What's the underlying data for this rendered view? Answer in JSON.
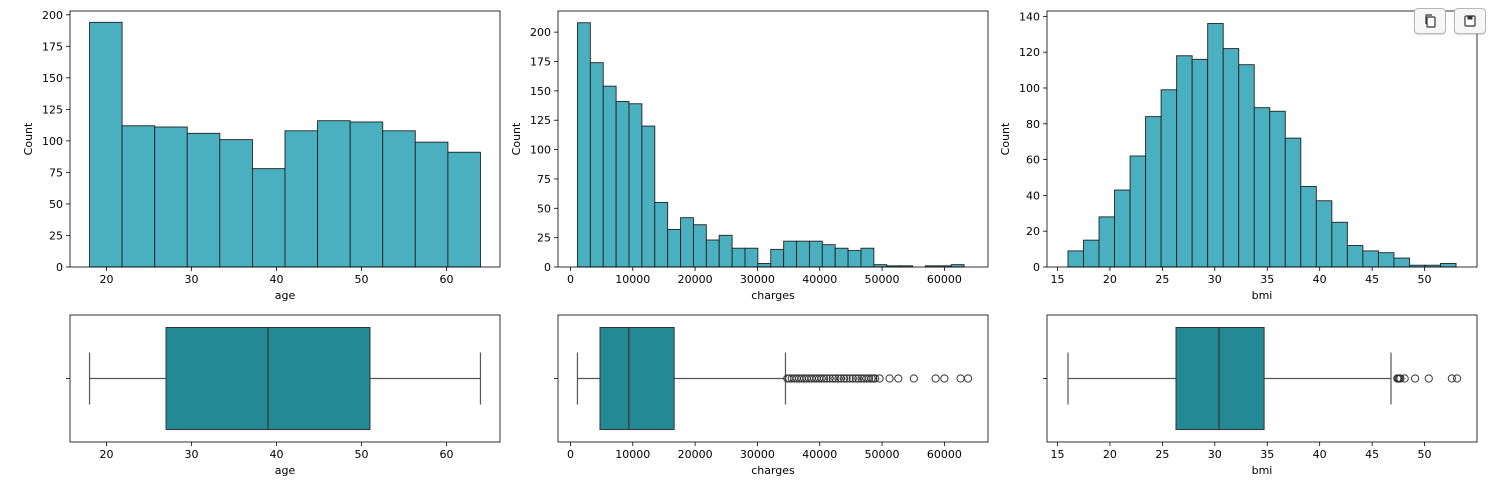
{
  "toolbar": {
    "copy_icon": "copy-icon",
    "save_icon": "save-icon"
  },
  "colors": {
    "hist_fill": "#4aafbf",
    "box_fill": "#238a95",
    "edge": "#222222",
    "axis": "#000000"
  },
  "chart_data": [
    {
      "type": "bar",
      "subtype": "histogram",
      "variable": "age",
      "xlabel": "age",
      "ylabel": "Count",
      "xlim": [
        15.7,
        66.3
      ],
      "ylim": [
        0,
        203
      ],
      "xticks": [
        20,
        30,
        40,
        50,
        60
      ],
      "yticks": [
        0,
        25,
        50,
        75,
        100,
        125,
        150,
        175,
        200
      ],
      "bin_edges": [
        18,
        21.83,
        25.67,
        29.5,
        33.33,
        37.17,
        41,
        44.83,
        48.67,
        52.5,
        56.33,
        60.17,
        64
      ],
      "values": [
        194,
        112,
        111,
        106,
        101,
        78,
        108,
        116,
        115,
        108,
        99,
        91
      ]
    },
    {
      "type": "bar",
      "subtype": "histogram",
      "variable": "charges",
      "xlabel": "charges",
      "ylabel": "Count",
      "xlim": [
        -2000,
        67000
      ],
      "ylim": [
        0,
        218
      ],
      "xticks": [
        0,
        10000,
        20000,
        30000,
        40000,
        50000,
        60000
      ],
      "yticks": [
        0,
        25,
        50,
        75,
        100,
        125,
        150,
        175,
        200
      ],
      "bin_edges": [
        1122,
        3190,
        5258,
        7326,
        9394,
        11462,
        13530,
        15598,
        17666,
        19734,
        21802,
        23870,
        25938,
        28006,
        30074,
        32142,
        34210,
        36278,
        38346,
        40414,
        42482,
        44550,
        46618,
        48686,
        50754,
        52822,
        54890,
        56958,
        59026,
        61094,
        63162
      ],
      "values": [
        208,
        174,
        154,
        141,
        139,
        120,
        55,
        32,
        42,
        36,
        23,
        27,
        16,
        16,
        3,
        15,
        22,
        22,
        22,
        19,
        16,
        14,
        16,
        2,
        1,
        1,
        0,
        1,
        1,
        2
      ]
    },
    {
      "type": "bar",
      "subtype": "histogram",
      "variable": "bmi",
      "xlabel": "bmi",
      "ylabel": "Count",
      "xlim": [
        14.0,
        55.0
      ],
      "ylim": [
        0,
        143
      ],
      "xticks": [
        15,
        20,
        25,
        30,
        35,
        40,
        45,
        50
      ],
      "yticks": [
        0,
        20,
        40,
        60,
        80,
        100,
        120,
        140
      ],
      "bin_edges": [
        16.0,
        17.48,
        18.96,
        20.44,
        21.92,
        23.4,
        24.88,
        26.36,
        27.84,
        29.32,
        30.8,
        32.28,
        33.76,
        35.24,
        36.72,
        38.2,
        39.68,
        41.16,
        42.64,
        44.12,
        45.6,
        47.08,
        48.56,
        50.04,
        51.52,
        53.0
      ],
      "values": [
        9,
        15,
        28,
        43,
        62,
        84,
        99,
        118,
        116,
        136,
        122,
        113,
        89,
        87,
        72,
        45,
        37,
        25,
        12,
        9,
        8,
        5,
        1,
        1,
        2
      ]
    },
    {
      "type": "box",
      "variable": "age",
      "xlabel": "age",
      "xlim": [
        15.7,
        66.3
      ],
      "xticks": [
        20,
        30,
        40,
        50,
        60
      ],
      "whisker_low": 18,
      "q1": 27,
      "median": 39,
      "q3": 51,
      "whisker_high": 64,
      "outliers": []
    },
    {
      "type": "box",
      "variable": "charges",
      "xlabel": "charges",
      "xlim": [
        -2000,
        67000
      ],
      "xticks": [
        0,
        10000,
        20000,
        30000,
        40000,
        50000,
        60000
      ],
      "whisker_low": 1122,
      "q1": 4740,
      "median": 9382,
      "q3": 16640,
      "whisker_high": 34500,
      "outliers": [
        34800,
        35100,
        35500,
        35900,
        36300,
        36700,
        37100,
        37500,
        37900,
        38300,
        38700,
        39100,
        39500,
        39900,
        40300,
        40700,
        41100,
        41600,
        42100,
        42500,
        43000,
        43400,
        43900,
        44300,
        44800,
        45300,
        45800,
        46200,
        46700,
        47100,
        47500,
        47900,
        48300,
        48600,
        48900,
        49600,
        51200,
        52600,
        55100,
        58600,
        60000,
        62600,
        63800
      ]
    },
    {
      "type": "box",
      "variable": "bmi",
      "xlabel": "bmi",
      "xlim": [
        14.0,
        55.0
      ],
      "xticks": [
        15,
        20,
        25,
        30,
        35,
        40,
        45,
        50
      ],
      "whisker_low": 16.0,
      "q1": 26.3,
      "median": 30.4,
      "q3": 34.7,
      "whisker_high": 46.8,
      "outliers": [
        47.4,
        47.5,
        47.6,
        47.7,
        48.1,
        49.1,
        50.4,
        52.6,
        53.1
      ]
    }
  ]
}
